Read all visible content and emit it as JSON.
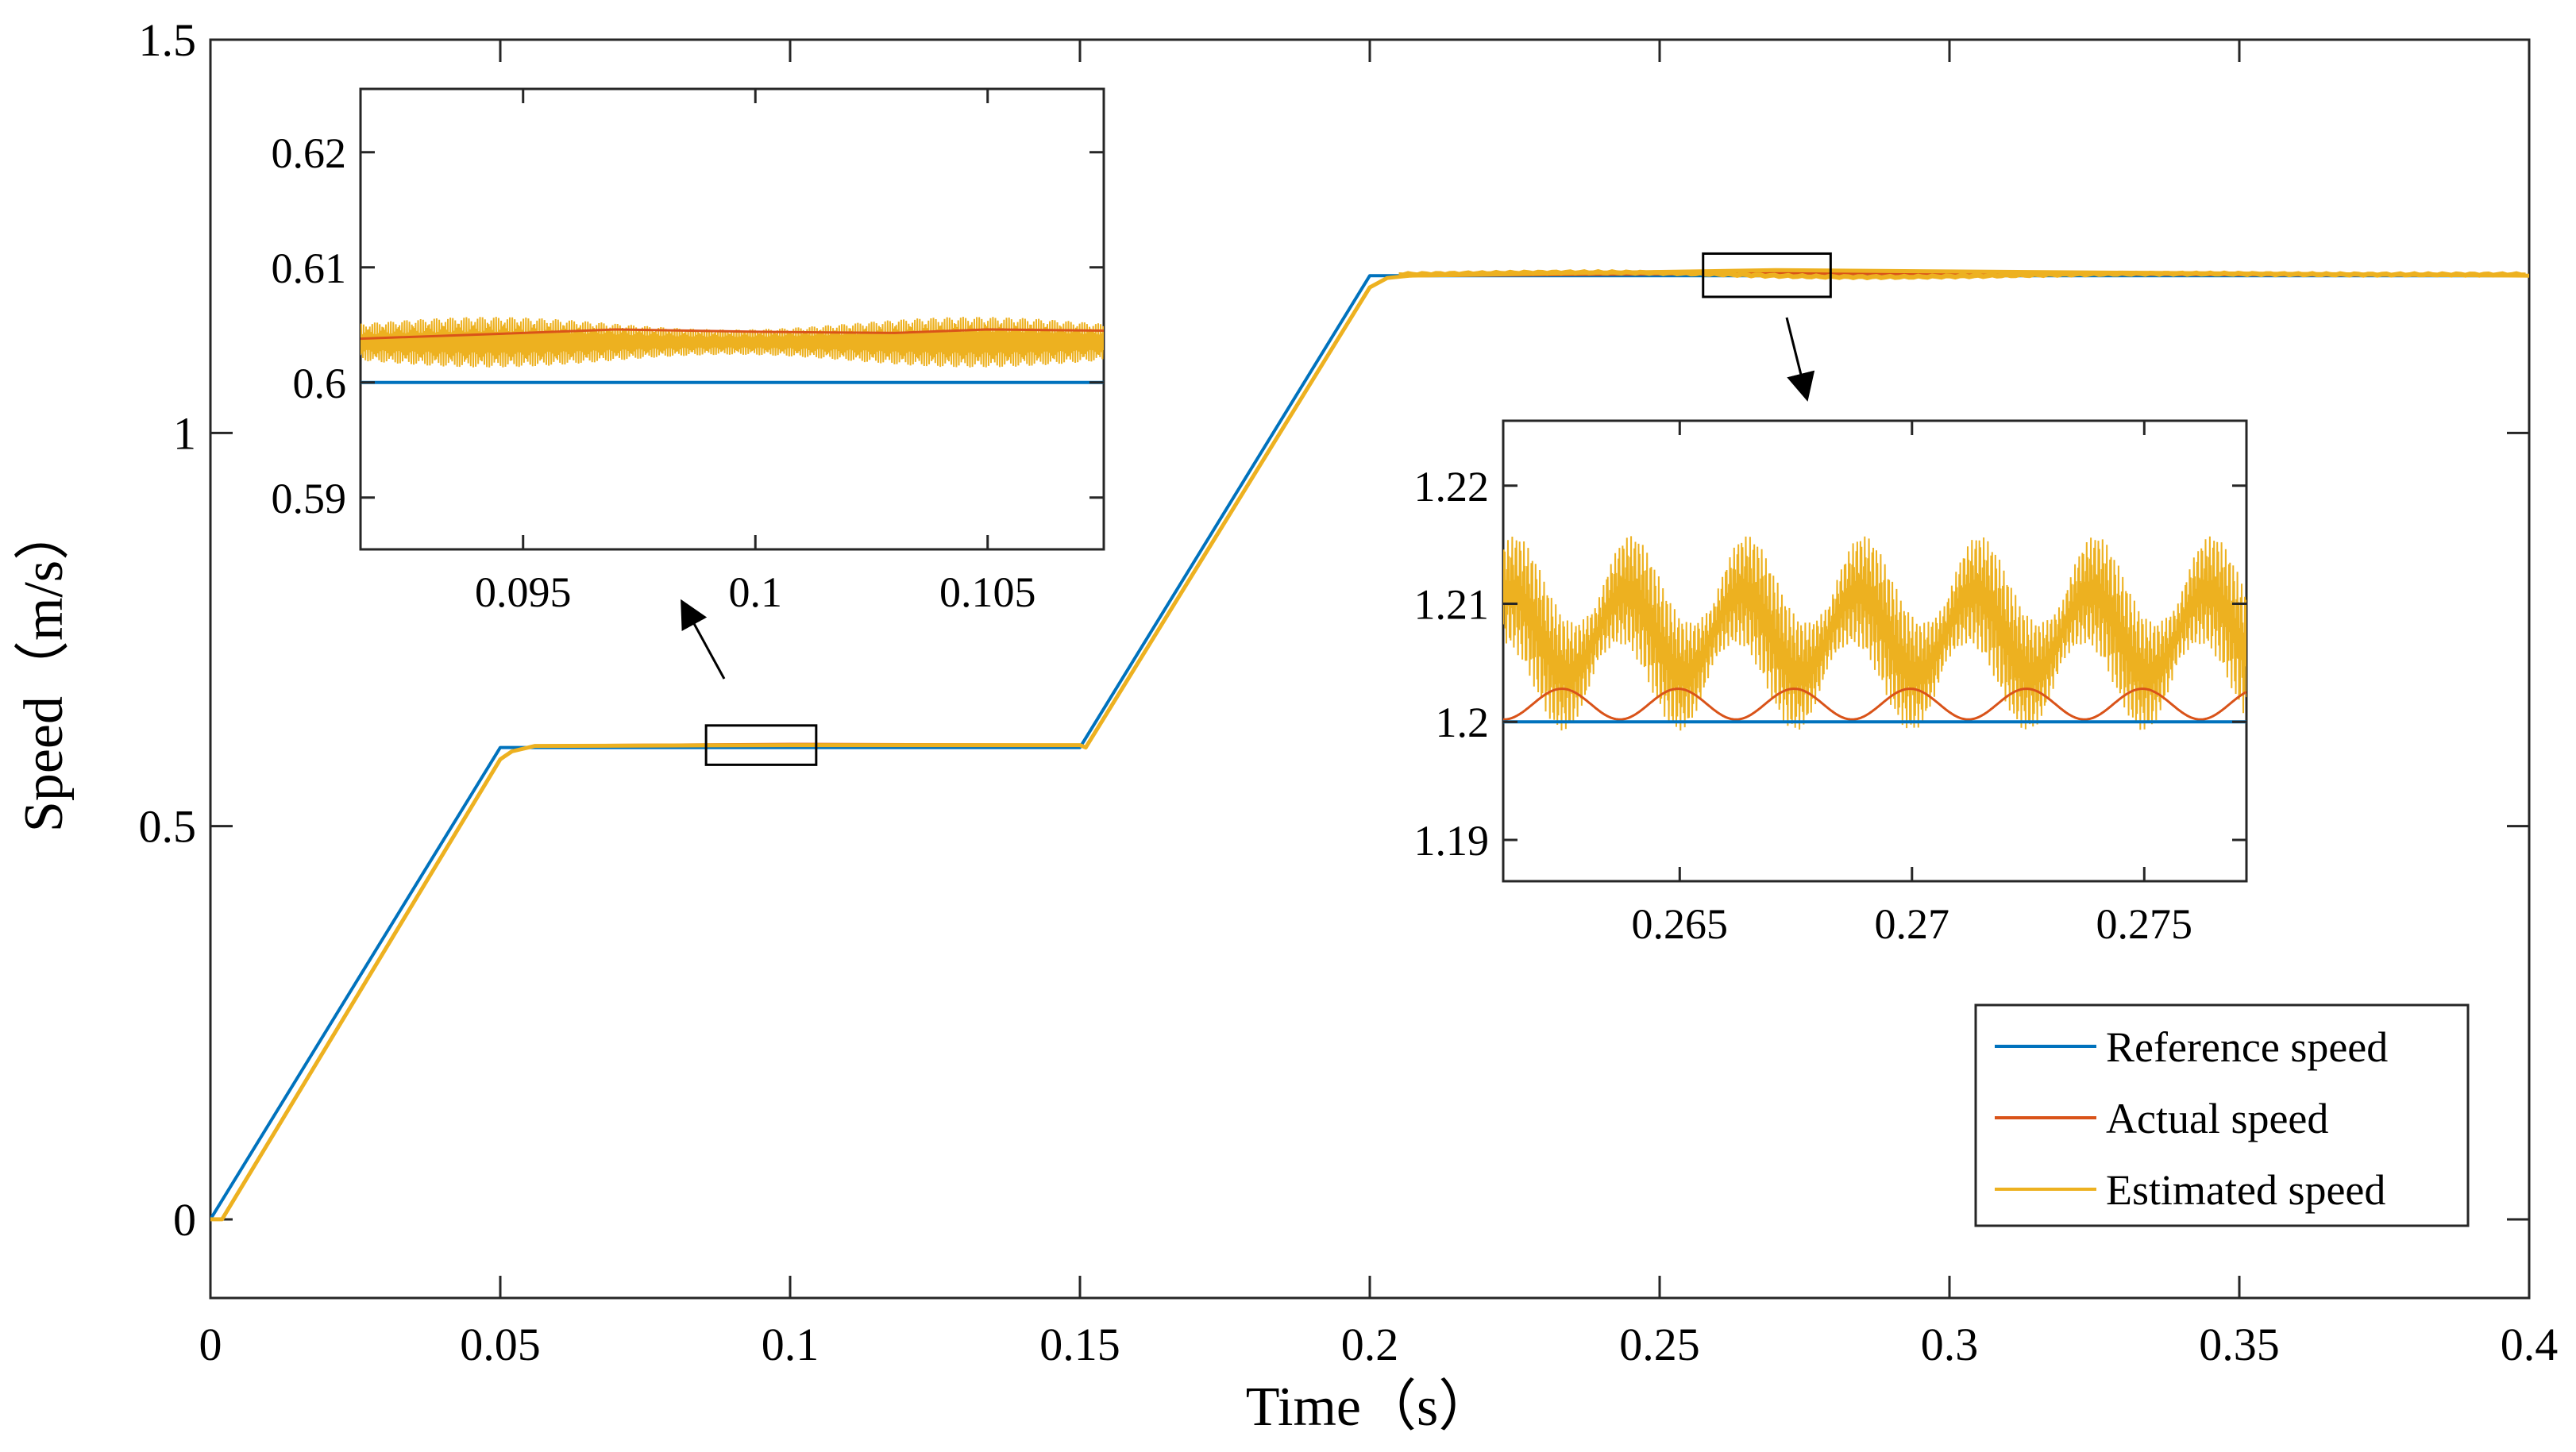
{
  "chart_data": {
    "type": "line",
    "xlabel": "Time（s）",
    "ylabel": "Speed（m/s）",
    "xlim": [
      0,
      0.4
    ],
    "ylim": [
      -0.1,
      1.5
    ],
    "xticks": [
      "0",
      "0.05",
      "0.1",
      "0.15",
      "0.2",
      "0.25",
      "0.3",
      "0.35",
      "0.4"
    ],
    "yticks": [
      "0",
      "0.5",
      "1",
      "1.5"
    ],
    "grid": false,
    "legend_position": "bottom-right",
    "series": [
      {
        "name": "Reference speed",
        "color": "#0072BD",
        "x": [
          0,
          0.05,
          0.15,
          0.2,
          0.4
        ],
        "y": [
          0,
          0.6,
          0.6,
          1.2,
          1.2
        ]
      },
      {
        "name": "Actual speed",
        "color": "#D95319",
        "x": [
          0,
          0.002,
          0.05,
          0.052,
          0.056,
          0.1,
          0.15,
          0.151,
          0.2,
          0.203,
          0.207,
          0.27,
          0.4
        ],
        "y": [
          0,
          0,
          0.585,
          0.595,
          0.602,
          0.604,
          0.603,
          0.6,
          1.185,
          1.197,
          1.2,
          1.203,
          1.2
        ]
      },
      {
        "name": "Estimated speed",
        "color": "#EDB120",
        "x": [
          0,
          0.002,
          0.05,
          0.052,
          0.056,
          0.1,
          0.15,
          0.151,
          0.2,
          0.203,
          0.207,
          0.27,
          0.4
        ],
        "y": [
          0,
          0,
          0.585,
          0.595,
          0.602,
          0.603,
          0.603,
          0.6,
          1.185,
          1.197,
          1.2,
          1.207,
          1.2
        ]
      }
    ],
    "zoom_boxes": [
      {
        "xlim": [
          0.0855,
          0.1045
        ],
        "ylim": [
          0.578,
          0.628
        ]
      },
      {
        "xlim": [
          0.2575,
          0.2795
        ],
        "ylim": [
          1.173,
          1.228
        ]
      }
    ],
    "insets": [
      {
        "xlim": [
          0.0915,
          0.1075
        ],
        "ylim": [
          0.5855,
          0.6255
        ],
        "xticks": [
          "0.095",
          "0.1",
          "0.105"
        ],
        "yticks": [
          "0.59",
          "0.6",
          "0.61",
          "0.62"
        ],
        "series": [
          {
            "name": "Reference speed",
            "y": 0.6
          },
          {
            "name": "Actual speed",
            "x": [
              0.0915,
              0.095,
              0.097,
              0.1,
              0.103,
              0.105,
              0.1075
            ],
            "y": [
              0.6038,
              0.6043,
              0.6046,
              0.6044,
              0.6043,
              0.6046,
              0.6045
            ]
          },
          {
            "name": "Estimated speed",
            "center": 0.6035,
            "amplitude": 0.0022
          }
        ]
      },
      {
        "xlim": [
          0.2612,
          0.2772
        ],
        "ylim": [
          1.1865,
          1.2255
        ],
        "xticks": [
          "0.265",
          "0.27",
          "0.275"
        ],
        "yticks": [
          "1.19",
          "1.2",
          "1.21",
          "1.22"
        ],
        "series": [
          {
            "name": "Reference speed",
            "y": 1.2
          },
          {
            "name": "Actual speed",
            "center": 1.2015,
            "amplitude": 0.0013,
            "period": 0.0025
          },
          {
            "name": "Estimated speed",
            "center": 1.2075,
            "amplitude": 0.0055,
            "period": 0.0025
          }
        ]
      }
    ]
  }
}
